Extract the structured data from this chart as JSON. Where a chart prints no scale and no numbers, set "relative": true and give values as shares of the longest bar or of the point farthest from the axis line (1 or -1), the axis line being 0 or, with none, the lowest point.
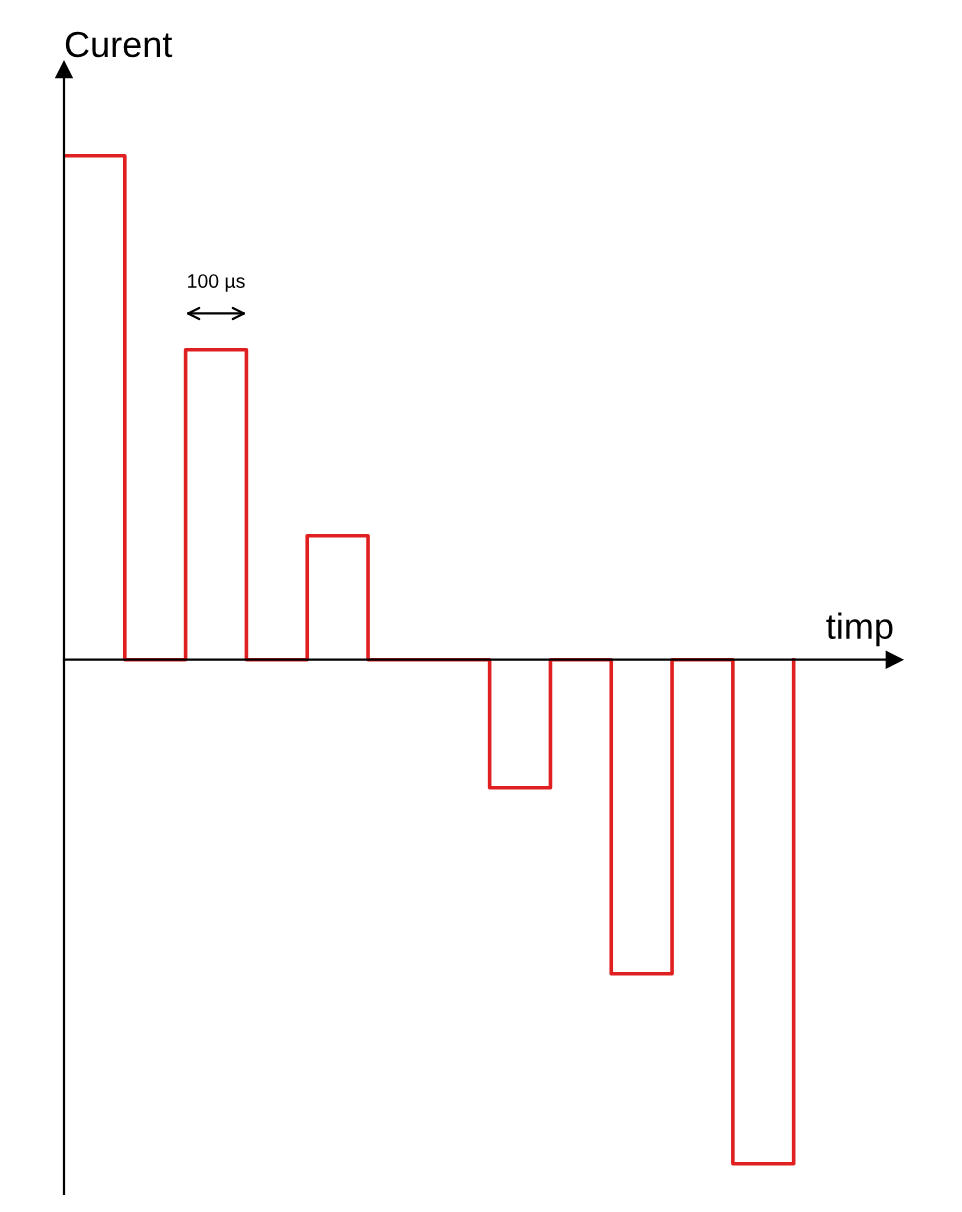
{
  "chart_data": {
    "type": "step",
    "relative": true,
    "xlabel": "timp",
    "ylabel": "Curent",
    "categories": [
      null,
      null,
      null,
      null,
      null,
      null,
      null,
      null,
      null,
      null,
      null,
      null,
      null
    ],
    "series": [
      {
        "color": "#e02020",
        "values": [
          1,
          0,
          0.615,
          0,
          0.246,
          0,
          0,
          -0.254,
          0,
          -0.623,
          0,
          -1,
          0
        ]
      }
    ],
    "annotations": [
      "100 µs"
    ],
    "tick_labels": false
  }
}
